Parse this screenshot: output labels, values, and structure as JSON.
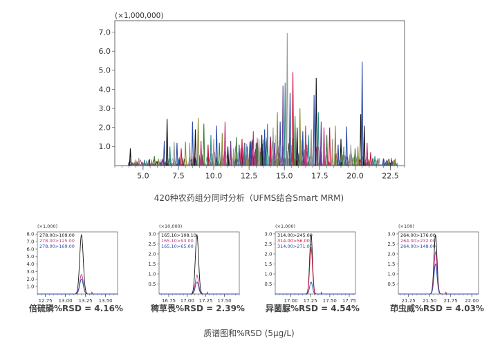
{
  "main_caption": "420种农药组分同时分析（UFMS结合Smart MRM)",
  "bottom_caption": "质谱图和%RSD (5μg/L)",
  "colors": {
    "black": "#111111",
    "red": "#d0103a",
    "magenta": "#c0307f",
    "blue": "#2a4aa8",
    "teal": "#2a8f8a",
    "green": "#3a7d34",
    "olive": "#8a8a30",
    "grey": "#9a9a9a",
    "purple": "#6a3a9a"
  },
  "chart_data": [
    {
      "type": "line",
      "multiplier": "(×1,000,000)",
      "xlim": [
        3.0,
        23.5
      ],
      "ylim": [
        0,
        7.6
      ],
      "x_ticks": [
        "5.0",
        "7.5",
        "10.0",
        "12.5",
        "15.0",
        "17.5",
        "20.0",
        "22.5"
      ],
      "x_tick_values": [
        5.0,
        7.5,
        10.0,
        12.5,
        15.0,
        17.5,
        20.0,
        22.5
      ],
      "y_ticks": [
        "1.0",
        "2.0",
        "3.0",
        "4.0",
        "5.0",
        "6.0",
        "7.0"
      ],
      "y_tick_values": [
        1,
        2,
        3,
        4,
        5,
        6,
        7
      ],
      "peaks": [
        [
          4.1,
          0.9,
          "black"
        ],
        [
          4.7,
          0.4,
          "grey"
        ],
        [
          5.1,
          0.3,
          "teal"
        ],
        [
          5.8,
          0.5,
          "green"
        ],
        [
          6.1,
          0.35,
          "olive"
        ],
        [
          6.5,
          1.3,
          "blue"
        ],
        [
          6.7,
          2.45,
          "black"
        ],
        [
          6.9,
          1.0,
          "teal"
        ],
        [
          7.2,
          1.25,
          "grey"
        ],
        [
          7.4,
          1.2,
          "blue"
        ],
        [
          7.7,
          0.9,
          "red"
        ],
        [
          8.0,
          1.25,
          "olive"
        ],
        [
          8.3,
          1.2,
          "grey"
        ],
        [
          8.5,
          2.3,
          "blue"
        ],
        [
          8.7,
          1.9,
          "black"
        ],
        [
          8.9,
          2.5,
          "olive"
        ],
        [
          9.1,
          1.3,
          "magenta"
        ],
        [
          9.3,
          2.2,
          "green"
        ],
        [
          9.6,
          1.1,
          "red"
        ],
        [
          9.8,
          1.6,
          "teal"
        ],
        [
          10.0,
          1.4,
          "grey"
        ],
        [
          10.2,
          2.1,
          "blue"
        ],
        [
          10.4,
          1.2,
          "green"
        ],
        [
          10.6,
          1.7,
          "olive"
        ],
        [
          10.8,
          2.3,
          "magenta"
        ],
        [
          11.0,
          1.0,
          "black"
        ],
        [
          11.2,
          1.3,
          "purple"
        ],
        [
          11.4,
          0.9,
          "grey"
        ],
        [
          11.6,
          1.5,
          "green"
        ],
        [
          11.8,
          1.1,
          "blue"
        ],
        [
          12.0,
          1.4,
          "red"
        ],
        [
          12.2,
          1.2,
          "teal"
        ],
        [
          12.4,
          1.0,
          "olive"
        ],
        [
          12.6,
          1.3,
          "blue"
        ],
        [
          12.8,
          1.8,
          "magenta"
        ],
        [
          13.0,
          1.2,
          "green"
        ],
        [
          13.2,
          1.4,
          "grey"
        ],
        [
          13.4,
          1.6,
          "black"
        ],
        [
          13.6,
          1.9,
          "blue"
        ],
        [
          13.8,
          2.2,
          "teal"
        ],
        [
          14.0,
          1.5,
          "red"
        ],
        [
          14.2,
          2.0,
          "grey"
        ],
        [
          14.3,
          1.2,
          "purple"
        ],
        [
          14.5,
          2.8,
          "olive"
        ],
        [
          14.7,
          2.3,
          "blue"
        ],
        [
          14.9,
          4.2,
          "purple"
        ],
        [
          15.05,
          4.35,
          "teal"
        ],
        [
          15.2,
          6.95,
          "grey"
        ],
        [
          15.4,
          3.8,
          "blue"
        ],
        [
          15.6,
          4.9,
          "red"
        ],
        [
          15.75,
          2.6,
          "green"
        ],
        [
          15.9,
          2.0,
          "black"
        ],
        [
          16.1,
          3.0,
          "olive"
        ],
        [
          16.3,
          1.8,
          "blue"
        ],
        [
          16.5,
          2.1,
          "magenta"
        ],
        [
          16.7,
          1.6,
          "teal"
        ],
        [
          16.9,
          1.9,
          "grey"
        ],
        [
          17.1,
          3.7,
          "blue"
        ],
        [
          17.25,
          4.6,
          "black"
        ],
        [
          17.4,
          2.8,
          "teal"
        ],
        [
          17.6,
          2.3,
          "purple"
        ],
        [
          17.8,
          2.0,
          "magenta"
        ],
        [
          18.0,
          1.6,
          "green"
        ],
        [
          18.2,
          2.0,
          "red"
        ],
        [
          18.4,
          1.4,
          "grey"
        ],
        [
          18.6,
          2.1,
          "olive"
        ],
        [
          18.8,
          1.1,
          "blue"
        ],
        [
          19.0,
          1.4,
          "black"
        ],
        [
          19.2,
          1.0,
          "teal"
        ],
        [
          19.4,
          2.05,
          "blue"
        ],
        [
          19.7,
          1.1,
          "grey"
        ],
        [
          20.0,
          0.9,
          "green"
        ],
        [
          20.2,
          1.0,
          "olive"
        ],
        [
          20.4,
          2.7,
          "black"
        ],
        [
          20.5,
          5.45,
          "blue"
        ],
        [
          20.65,
          2.1,
          "black"
        ],
        [
          20.85,
          1.2,
          "magenta"
        ],
        [
          21.1,
          0.7,
          "red"
        ],
        [
          21.4,
          0.5,
          "teal"
        ],
        [
          21.7,
          0.4,
          "grey"
        ],
        [
          22.0,
          0.35,
          "blue"
        ],
        [
          22.4,
          0.3,
          "green"
        ],
        [
          22.8,
          0.3,
          "olive"
        ]
      ]
    },
    {
      "type": "line",
      "title": "倍硫磷%RSD = 4.16%",
      "multiplier": "(×1,000)",
      "xlim": [
        12.65,
        13.65
      ],
      "ylim": [
        0,
        8.3
      ],
      "x_ticks": [
        "12.75",
        "13.00",
        "13.25",
        "13.50"
      ],
      "x_tick_values": [
        12.75,
        13.0,
        13.25,
        13.5
      ],
      "y_ticks": [
        "1.0",
        "2.0",
        "3.0",
        "4.0",
        "5.0",
        "6.0",
        "7.0",
        "8.0"
      ],
      "y_tick_values": [
        1,
        2,
        3,
        4,
        5,
        6,
        7,
        8
      ],
      "peak_center": 13.2,
      "peak_width": 0.022,
      "series": [
        {
          "name": "278.00>109.00",
          "color": "black",
          "height": 7.9
        },
        {
          "name": "278.00>125.00",
          "color": "magenta",
          "height": 2.6
        },
        {
          "name": "278.00>169.00",
          "color": "blue",
          "height": 2.0
        }
      ]
    },
    {
      "type": "line",
      "title": "稗草畏%RSD = 2.39%",
      "multiplier": "(×10,000)",
      "xlim": [
        16.62,
        17.7
      ],
      "ylim": [
        0,
        3.1
      ],
      "x_ticks": [
        "16.75",
        "17.00",
        "17.25",
        "17.50"
      ],
      "x_tick_values": [
        16.75,
        17.0,
        17.25,
        17.5
      ],
      "y_ticks": [
        "0.5",
        "1.0",
        "1.5",
        "2.0",
        "2.5",
        "3.0"
      ],
      "y_tick_values": [
        0.5,
        1.0,
        1.5,
        2.0,
        2.5,
        3.0
      ],
      "peak_center": 17.13,
      "peak_width": 0.022,
      "series": [
        {
          "name": "165.10>108.10",
          "color": "black",
          "height": 2.95
        },
        {
          "name": "165.10>93.00",
          "color": "magenta",
          "height": 0.95
        },
        {
          "name": "165.10>65.00",
          "color": "blue",
          "height": 0.6
        }
      ]
    },
    {
      "type": "line",
      "title": "异菌脲%RSD = 4.54%",
      "multiplier": "(×1,000)",
      "xlim": [
        16.8,
        17.83
      ],
      "ylim": [
        0,
        3.1
      ],
      "x_ticks": [
        "17.00",
        "17.25",
        "17.50",
        "17.75"
      ],
      "x_tick_values": [
        17.0,
        17.25,
        17.5,
        17.75
      ],
      "y_ticks": [
        "0.5",
        "1.0",
        "1.5",
        "2.0",
        "2.5",
        "3.0"
      ],
      "y_tick_values": [
        0.5,
        1.0,
        1.5,
        2.0,
        2.5,
        3.0
      ],
      "peak_center": 17.26,
      "peak_width": 0.018,
      "series": [
        {
          "name": "314.00>245.00",
          "color": "black",
          "height": 2.95
        },
        {
          "name": "314.00>56.00",
          "color": "red",
          "height": 2.3
        },
        {
          "name": "314.00>271.00",
          "color": "blue",
          "height": 0.6
        }
      ]
    },
    {
      "type": "line",
      "title": "茚虫威%RSD = 4.03%",
      "multiplier": "(×100)",
      "xlim": [
        21.13,
        22.08
      ],
      "ylim": [
        0,
        3.1
      ],
      "x_ticks": [
        "21.25",
        "21.50",
        "21.75",
        "22.00"
      ],
      "x_tick_values": [
        21.25,
        21.5,
        21.75,
        22.0
      ],
      "y_ticks": [
        "0.5",
        "1.0",
        "1.5",
        "2.0",
        "2.5",
        "3.0"
      ],
      "y_tick_values": [
        0.5,
        1.0,
        1.5,
        2.0,
        2.5,
        3.0
      ],
      "peak_center": 21.57,
      "peak_width": 0.018,
      "series": [
        {
          "name": "264.00>176.00",
          "color": "black",
          "height": 2.95
        },
        {
          "name": "264.00>232.00",
          "color": "magenta",
          "height": 2.1
        },
        {
          "name": "264.00>148.00",
          "color": "blue",
          "height": 1.5
        }
      ]
    }
  ]
}
